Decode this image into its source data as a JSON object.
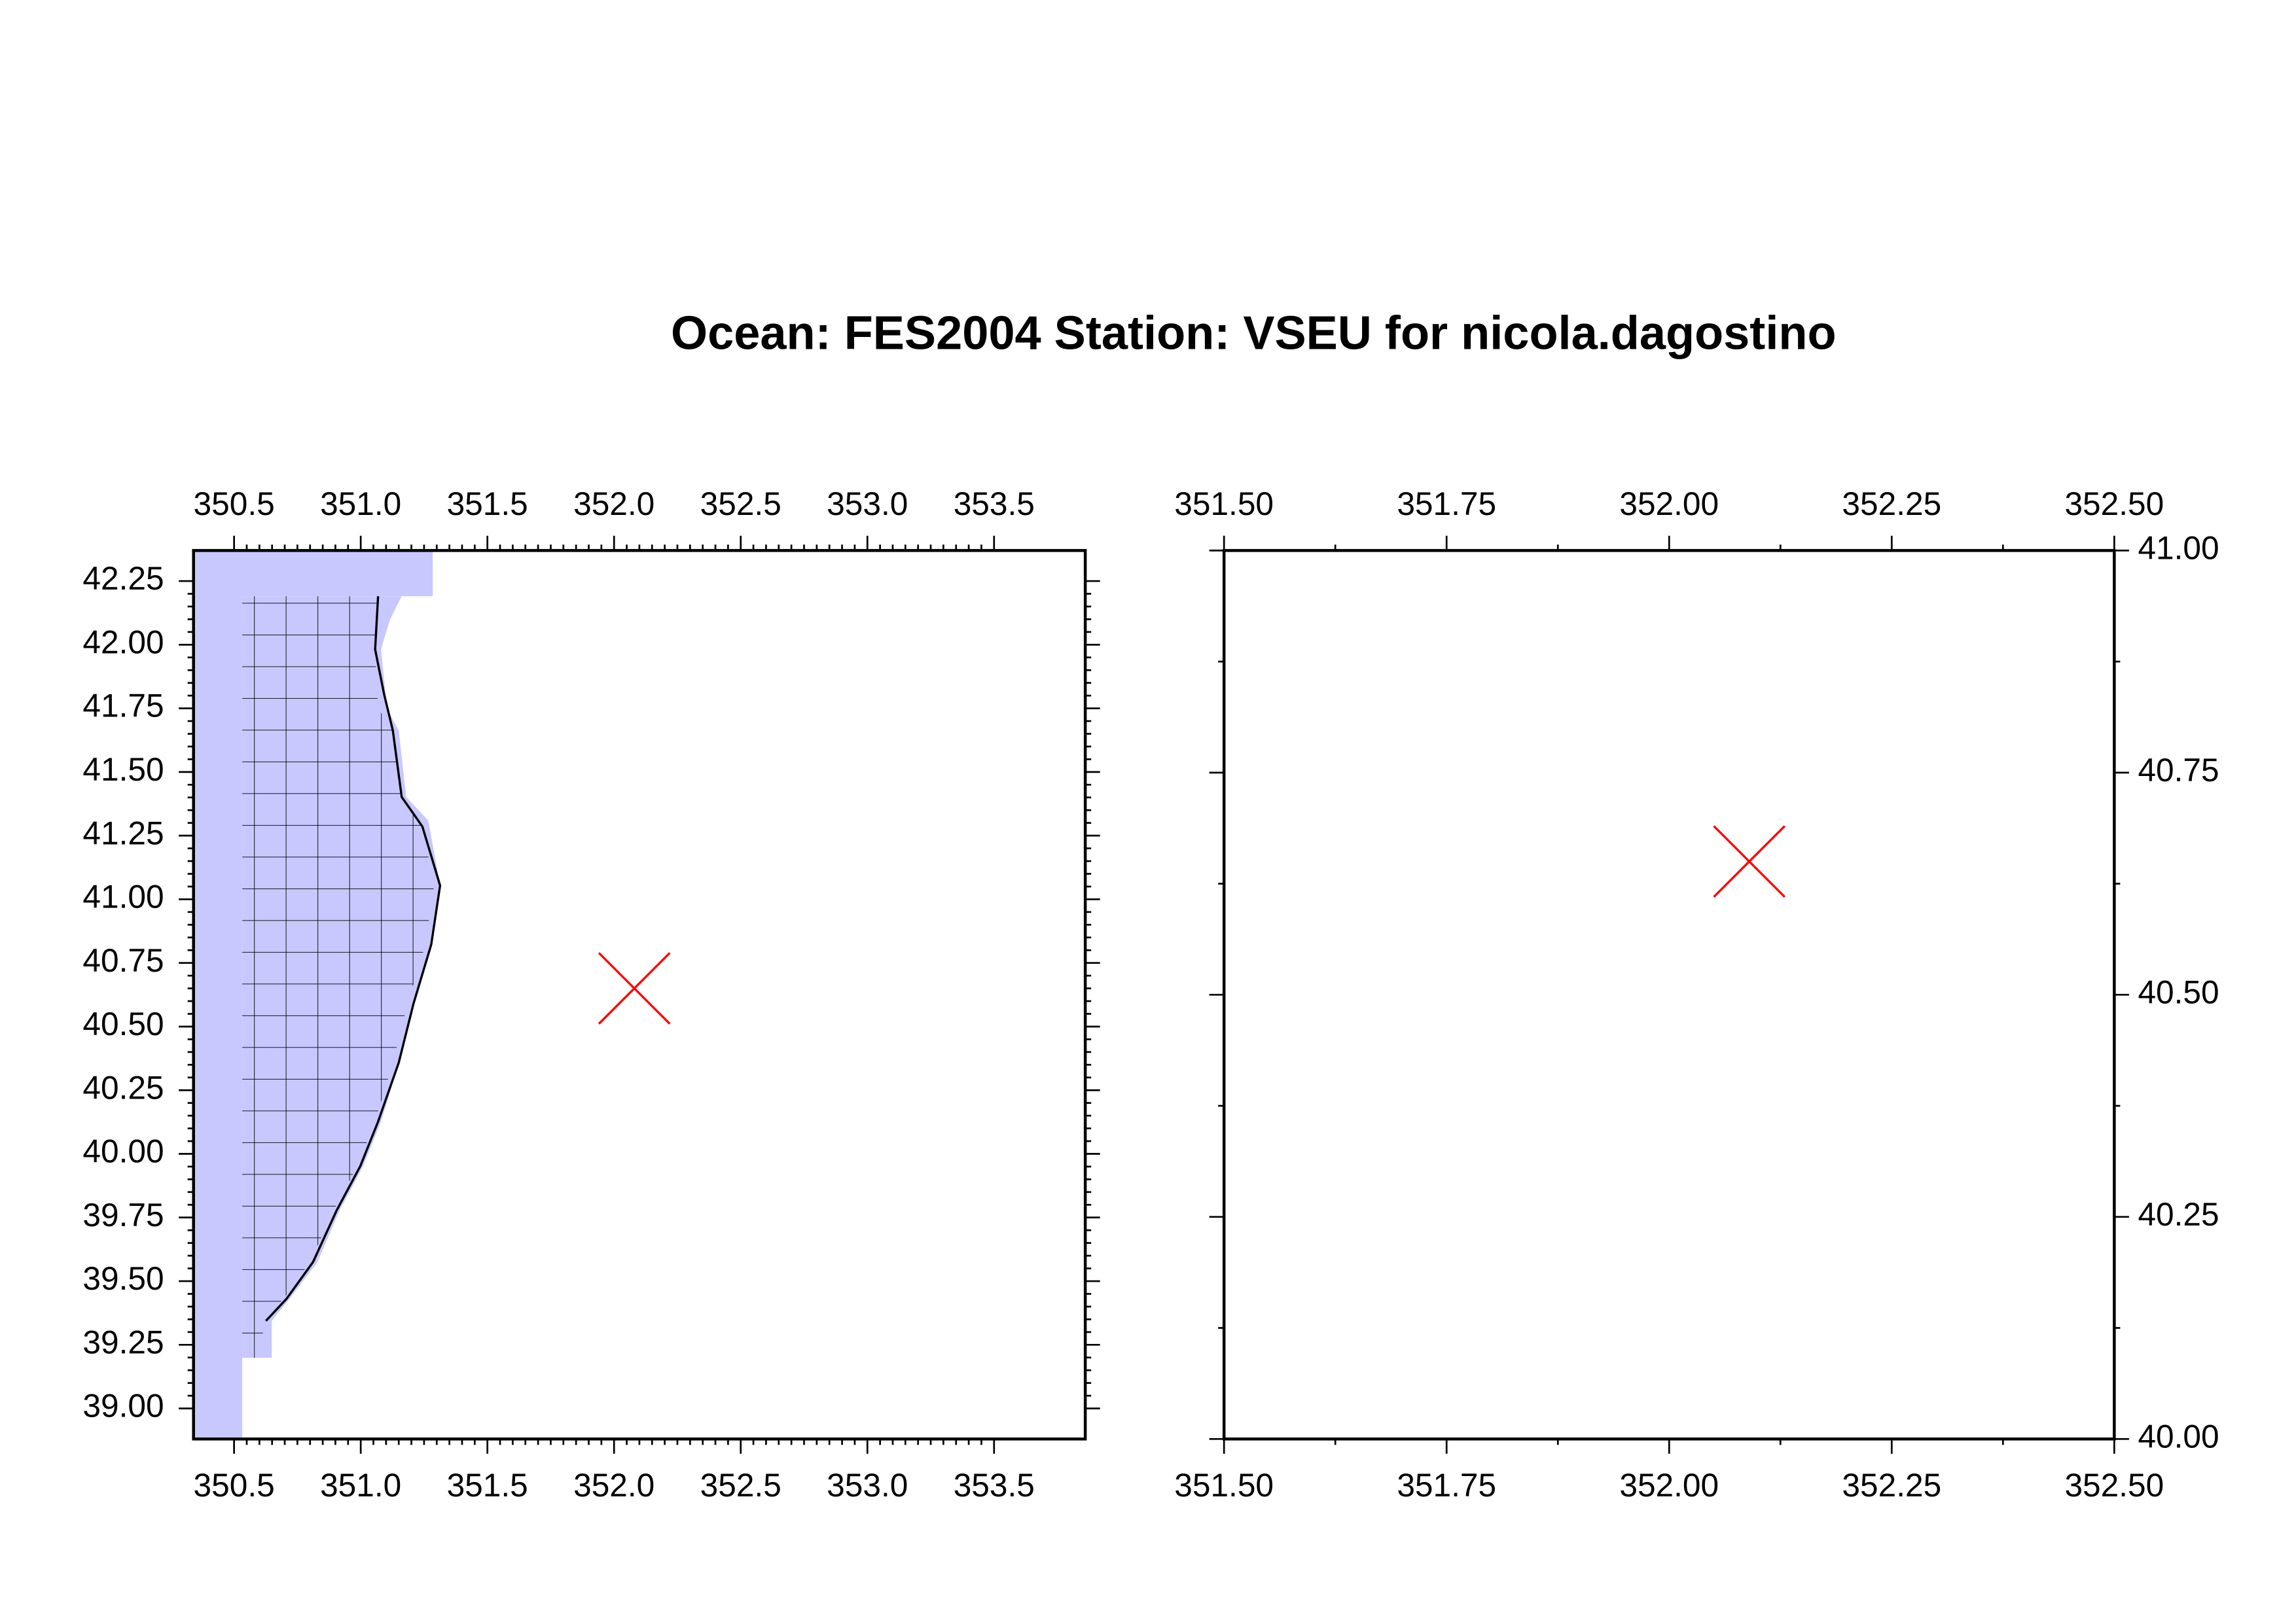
{
  "title": "Ocean: FES2004  Station: VSEU  for nicola.dagostino",
  "chart_data": [
    {
      "type": "map",
      "xlim": [
        350.34,
        353.86
      ],
      "ylim": [
        38.88,
        42.37
      ],
      "xticks": [
        350.5,
        {
          "value": 351,
          "label": "351.0"
        },
        351.5,
        {
          "value": 352,
          "label": "352.0"
        },
        352.5,
        {
          "value": 353,
          "label": "353.0"
        },
        353.5
      ],
      "yticks": [
        {
          "value": 39,
          "label": "39.00"
        },
        39.25,
        {
          "value": 39.5,
          "label": "39.50"
        },
        39.75,
        {
          "value": 40,
          "label": "40.00"
        },
        40.25,
        {
          "value": 40.5,
          "label": "40.50"
        },
        40.75,
        {
          "value": 41,
          "label": "41.00"
        },
        41.25,
        {
          "value": 41.5,
          "label": "41.50"
        },
        41.75,
        {
          "value": 42,
          "label": "42.00"
        },
        42.25
      ],
      "station": {
        "x": 352.08,
        "y": 40.65
      },
      "marker_color": "#ff0000"
    },
    {
      "type": "map",
      "xlim": [
        351.5,
        352.5
      ],
      "ylim": [
        40,
        41
      ],
      "xticks": [
        {
          "value": 351.5,
          "label": "351.50"
        },
        351.75,
        {
          "value": 352,
          "label": "352.00"
        },
        352.25,
        {
          "value": 352.5,
          "label": "352.50"
        }
      ],
      "yticks": [
        {
          "value": 40,
          "label": "40.00"
        },
        40.25,
        {
          "value": 40.5,
          "label": "40.50"
        },
        40.75,
        {
          "value": 41,
          "label": "41.00"
        }
      ],
      "station": {
        "x": 352.09,
        "y": 40.65
      },
      "marker_color": "#ff0000"
    }
  ]
}
